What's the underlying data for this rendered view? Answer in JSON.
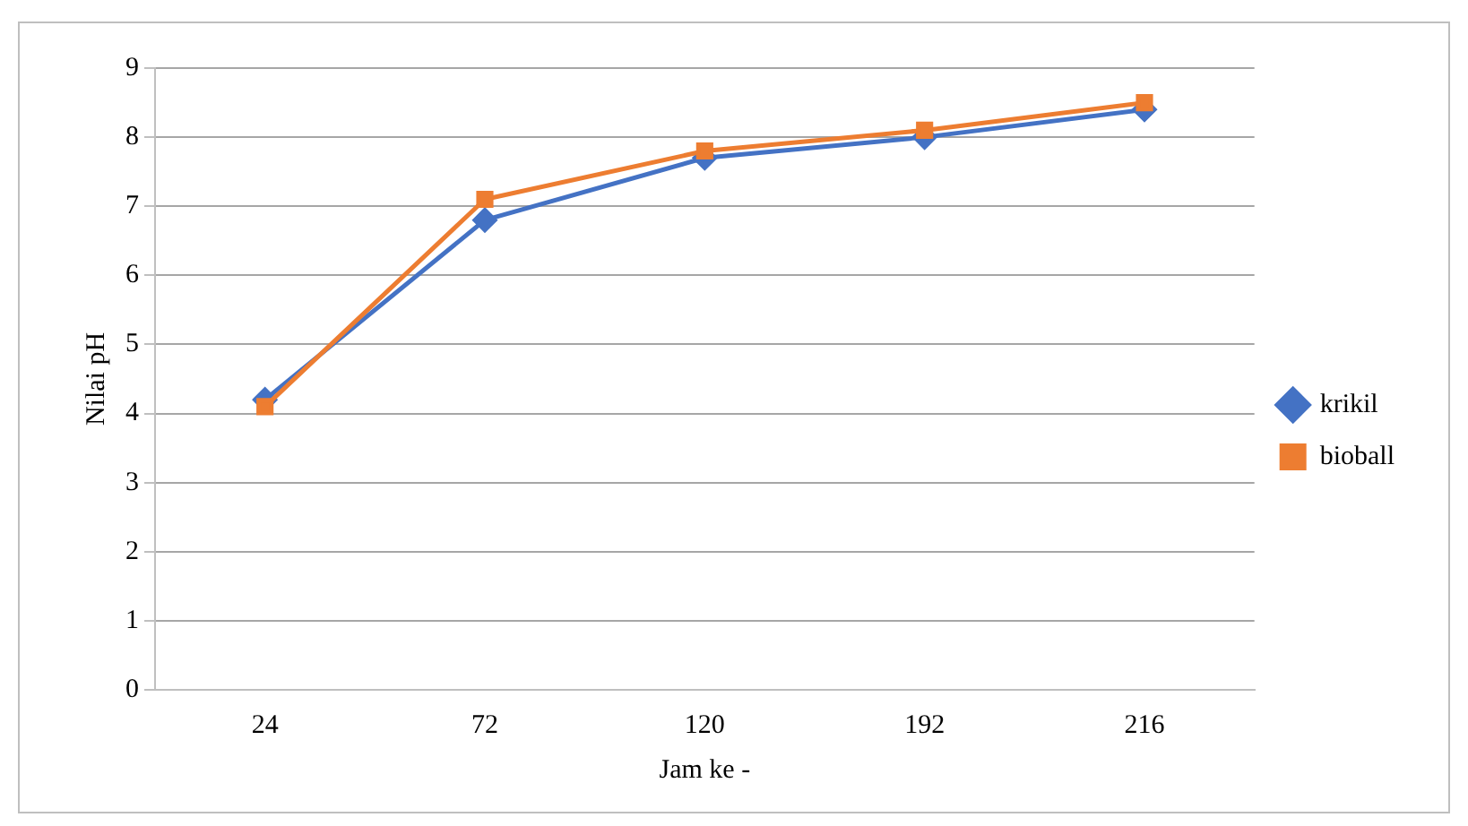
{
  "chart_data": {
    "type": "line",
    "xlabel": "Jam ke -",
    "ylabel": "Nilai pH",
    "categories": [
      "24",
      "72",
      "120",
      "192",
      "216"
    ],
    "series": [
      {
        "name": "krikil",
        "color": "#4472c4",
        "marker": "diamond",
        "values": [
          4.2,
          6.8,
          7.7,
          8.0,
          8.4
        ]
      },
      {
        "name": "bioball",
        "color": "#ed7d31",
        "marker": "square",
        "values": [
          4.1,
          7.1,
          7.8,
          8.1,
          8.5
        ]
      }
    ],
    "ylim": [
      0,
      9
    ],
    "yticks": [
      0,
      1,
      2,
      3,
      4,
      5,
      6,
      7,
      8,
      9
    ],
    "grid": "y",
    "legend": "right"
  }
}
